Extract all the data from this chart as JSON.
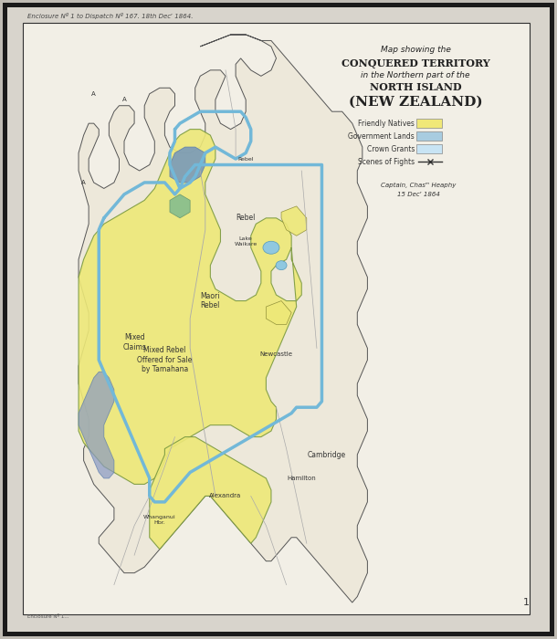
{
  "title_line1": "Map showing the",
  "title_line2": "CONQUERED TERRITORY",
  "title_line3": "in the Northern part of the",
  "title_line4": "NORTH ISLAND",
  "title_line5": "(NEW ZEALAND)",
  "header_text": "Enclosure Nº 1 to Dispatch Nº 167. 18th Decʳ 1864.",
  "legend": [
    {
      "label": "Friendly Natives",
      "color": "#f0e878"
    },
    {
      "label": "Government Lands",
      "color": "#a8cce0"
    },
    {
      "label": "Crown Grants",
      "color": "#c8e4f4"
    },
    {
      "label": "Scenes of Fights",
      "color": "#333333"
    }
  ],
  "signed_line1": "Captain, Chasᵐ Heaphy",
  "signed_line2": "15 Decʳ 1864",
  "map_bg": "#f2efe6",
  "land_bg": "#ede8da",
  "outer_bg": "#c0bcb4",
  "border_color": "#303030",
  "yellow_color": "#ede878",
  "blue_line_color": "#72b8d8",
  "mauve_color": "#8899c4",
  "green_color": "#78b890",
  "line_color": "#888888",
  "coast_color": "#555555",
  "figsize": [
    6.1,
    7.0
  ],
  "dpi": 100
}
